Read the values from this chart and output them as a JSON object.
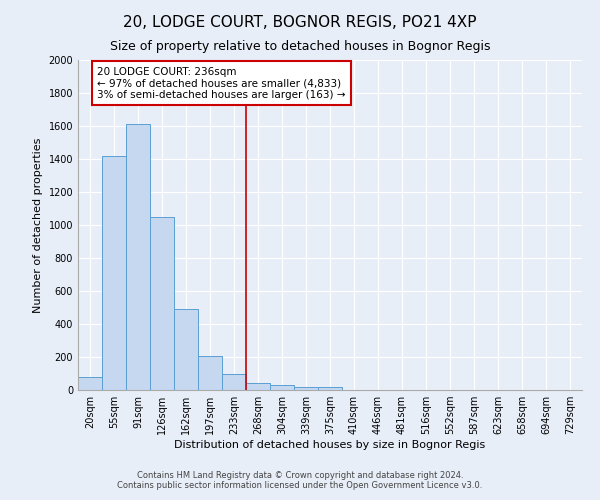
{
  "title": "20, LODGE COURT, BOGNOR REGIS, PO21 4XP",
  "subtitle": "Size of property relative to detached houses in Bognor Regis",
  "xlabel": "Distribution of detached houses by size in Bognor Regis",
  "ylabel": "Number of detached properties",
  "footnote1": "Contains HM Land Registry data © Crown copyright and database right 2024.",
  "footnote2": "Contains public sector information licensed under the Open Government Licence v3.0.",
  "bar_labels": [
    "20sqm",
    "55sqm",
    "91sqm",
    "126sqm",
    "162sqm",
    "197sqm",
    "233sqm",
    "268sqm",
    "304sqm",
    "339sqm",
    "375sqm",
    "410sqm",
    "446sqm",
    "481sqm",
    "516sqm",
    "552sqm",
    "587sqm",
    "623sqm",
    "658sqm",
    "694sqm",
    "729sqm"
  ],
  "bar_values": [
    80,
    1420,
    1610,
    1050,
    490,
    205,
    100,
    40,
    30,
    20,
    18,
    0,
    0,
    0,
    0,
    0,
    0,
    0,
    0,
    0,
    0
  ],
  "bar_color": "#c5d8f0",
  "bar_edge_color": "#5a9fd4",
  "ylim": [
    0,
    2000
  ],
  "yticks": [
    0,
    200,
    400,
    600,
    800,
    1000,
    1200,
    1400,
    1600,
    1800,
    2000
  ],
  "property_line_x": 6.5,
  "vline_color": "#cc0000",
  "annotation_text": "20 LODGE COURT: 236sqm\n← 97% of detached houses are smaller (4,833)\n3% of semi-detached houses are larger (163) →",
  "annotation_box_color": "#ffffff",
  "annotation_box_edge": "#cc0000",
  "background_color": "#e8eef8",
  "grid_color": "#ffffff",
  "title_fontsize": 11,
  "subtitle_fontsize": 9,
  "axis_fontsize": 8,
  "tick_fontsize": 7,
  "annot_fontsize": 7.5,
  "footnote_fontsize": 6
}
